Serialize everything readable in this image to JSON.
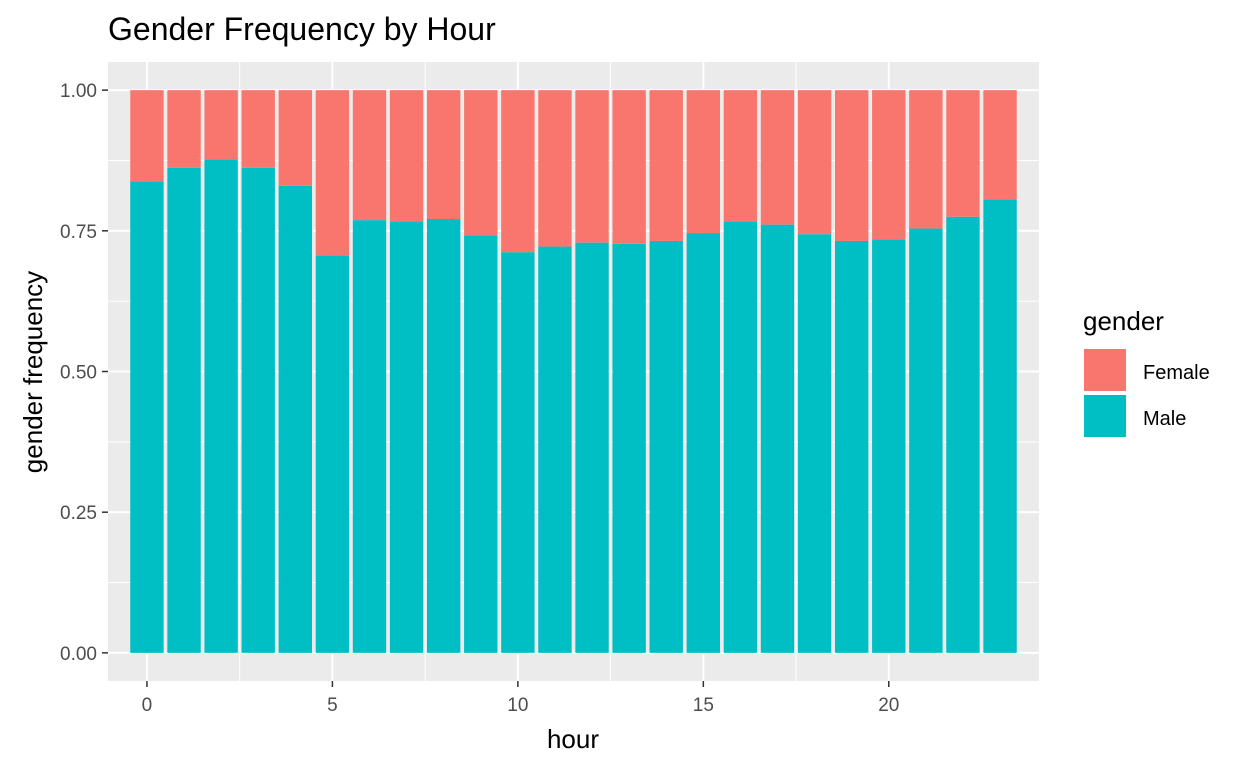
{
  "chart_data": {
    "type": "bar",
    "stacked": true,
    "title": "Gender Frequency by Hour",
    "xlabel": "hour",
    "ylabel": "gender frequency",
    "x": [
      0,
      1,
      2,
      3,
      4,
      5,
      6,
      7,
      8,
      9,
      10,
      11,
      12,
      13,
      14,
      15,
      16,
      17,
      18,
      19,
      20,
      21,
      22,
      23
    ],
    "series": [
      {
        "name": "Male",
        "color": "#00BFC4",
        "values": [
          0.838,
          0.862,
          0.877,
          0.862,
          0.83,
          0.706,
          0.769,
          0.767,
          0.771,
          0.742,
          0.712,
          0.722,
          0.729,
          0.727,
          0.732,
          0.746,
          0.767,
          0.761,
          0.744,
          0.732,
          0.735,
          0.754,
          0.775,
          0.806
        ]
      },
      {
        "name": "Female",
        "color": "#F8766D",
        "values": [
          0.162,
          0.138,
          0.123,
          0.138,
          0.17,
          0.294,
          0.231,
          0.233,
          0.229,
          0.258,
          0.288,
          0.278,
          0.271,
          0.273,
          0.268,
          0.254,
          0.233,
          0.239,
          0.256,
          0.268,
          0.265,
          0.246,
          0.225,
          0.194
        ]
      }
    ],
    "ylim": [
      -0.05,
      1.05
    ],
    "xlim": [
      -1.05,
      24.05
    ],
    "yticks": [
      "0.00",
      "0.25",
      "0.50",
      "0.75",
      "1.00"
    ],
    "yticks_values": [
      0,
      0.25,
      0.5,
      0.75,
      1.0
    ],
    "xticks": [
      "0",
      "5",
      "10",
      "15",
      "20"
    ],
    "xticks_values": [
      0,
      5,
      10,
      15,
      20
    ],
    "grid": true,
    "legend": {
      "title": "gender",
      "position": "right",
      "entries": [
        "Female",
        "Male"
      ]
    },
    "panel_background": "#EBEBEB",
    "grid_color": "#FFFFFF"
  }
}
